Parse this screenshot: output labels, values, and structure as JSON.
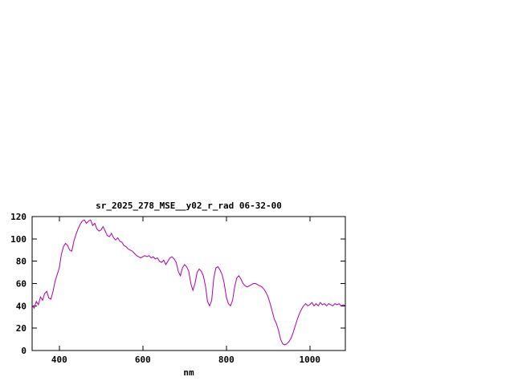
{
  "window": {
    "background_color": "#ffffff"
  },
  "chart_data": {
    "type": "line",
    "title": "sr_2025_278_MSE__y02_r_rad 06-32-00",
    "xlabel": "nm",
    "ylabel": "",
    "xlim": [
      335,
      1085
    ],
    "ylim": [
      0,
      120
    ],
    "x_ticks": [
      400,
      600,
      800,
      1000
    ],
    "y_ticks": [
      0,
      20,
      40,
      60,
      80,
      100,
      120
    ],
    "grid": false,
    "legend": false,
    "line_color": "#aa00aa",
    "border_color": "#000000",
    "x_start": 335,
    "x_step": 5,
    "y": [
      40,
      38,
      44,
      41,
      48,
      45,
      51,
      53,
      47,
      46,
      53,
      62,
      68,
      74,
      86,
      93,
      96,
      94,
      90,
      89,
      98,
      104,
      109,
      113,
      116,
      117,
      114,
      116,
      117,
      112,
      114,
      109,
      107,
      108,
      111,
      107,
      103,
      102,
      105,
      101,
      99,
      101,
      98,
      97,
      94,
      93,
      91,
      90,
      89,
      87,
      85,
      84,
      83,
      84,
      85,
      84,
      85,
      83,
      84,
      82,
      83,
      80,
      79,
      81,
      77,
      80,
      83,
      84,
      82,
      79,
      71,
      67,
      74,
      77,
      75,
      71,
      60,
      54,
      60,
      70,
      73,
      71,
      67,
      58,
      44,
      40,
      45,
      65,
      74,
      75,
      72,
      68,
      60,
      48,
      42,
      40,
      45,
      57,
      65,
      67,
      64,
      60,
      58,
      57,
      58,
      59,
      60,
      60,
      59,
      58,
      57,
      55,
      52,
      48,
      42,
      35,
      28,
      24,
      18,
      10,
      6,
      5,
      6,
      8,
      11,
      16,
      22,
      28,
      33,
      37,
      40,
      42,
      40,
      41,
      43,
      40,
      42,
      40,
      43,
      41,
      42,
      40,
      42,
      41,
      40,
      42,
      41,
      42,
      40,
      41,
      40
    ]
  }
}
